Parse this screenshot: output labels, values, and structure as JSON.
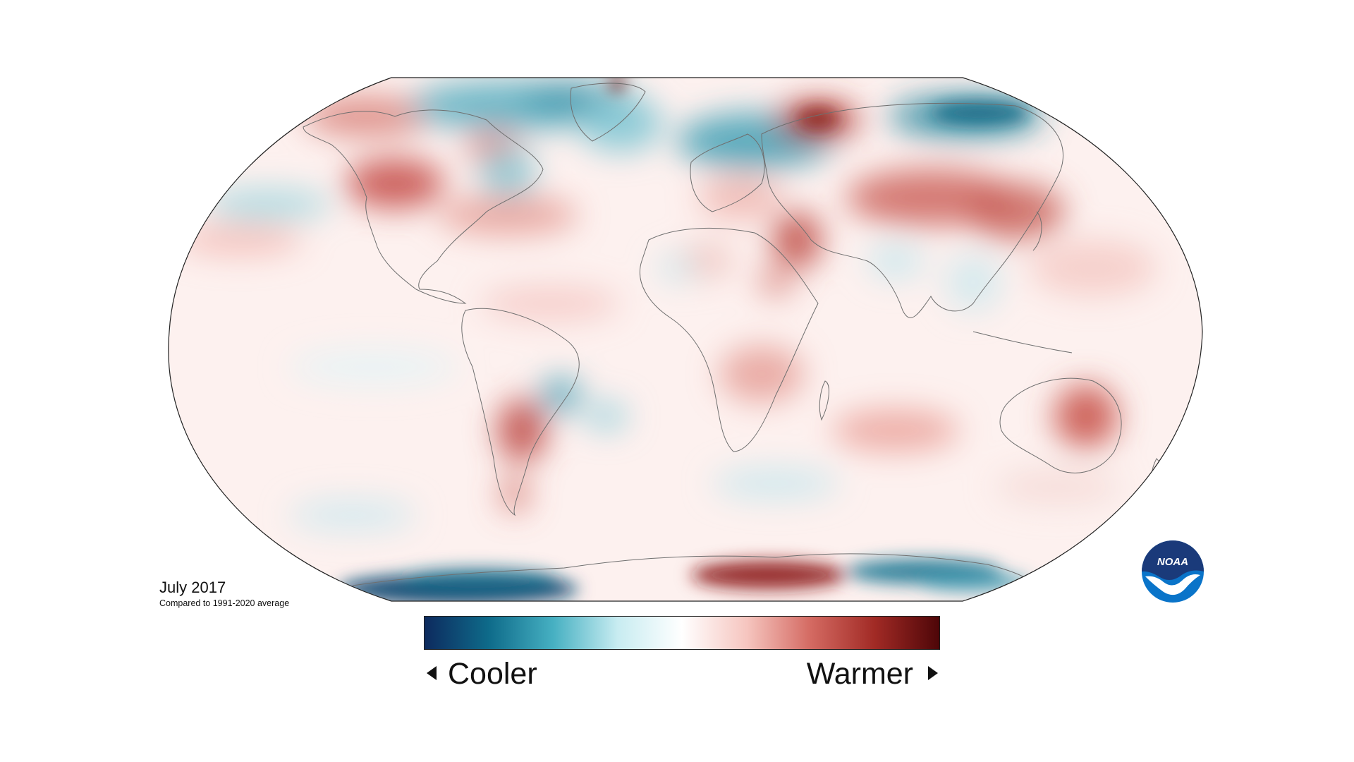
{
  "caption": {
    "title": "July 2017",
    "subtitle": "Compared to 1991-2020 average"
  },
  "legend": {
    "cooler_label": "Cooler",
    "warmer_label": "Warmer",
    "gradient_stops": [
      "#0d2a5e",
      "#0e6b8a",
      "#46b0c2",
      "#c8ecf1",
      "#ffffff",
      "#f6c6c0",
      "#d46a62",
      "#a12a25",
      "#4e0608"
    ]
  },
  "logo": {
    "text": "NOAA",
    "name": "noaa-logo"
  },
  "colors": {
    "warm": "#c0504a",
    "warm_dark": "#8c1a18",
    "cool": "#2d93a8",
    "cool_dark": "#0e4a73",
    "coastline": "#6f6f6f",
    "noaa_blue": "#0a74c9",
    "noaa_navy": "#1a3a7a"
  }
}
